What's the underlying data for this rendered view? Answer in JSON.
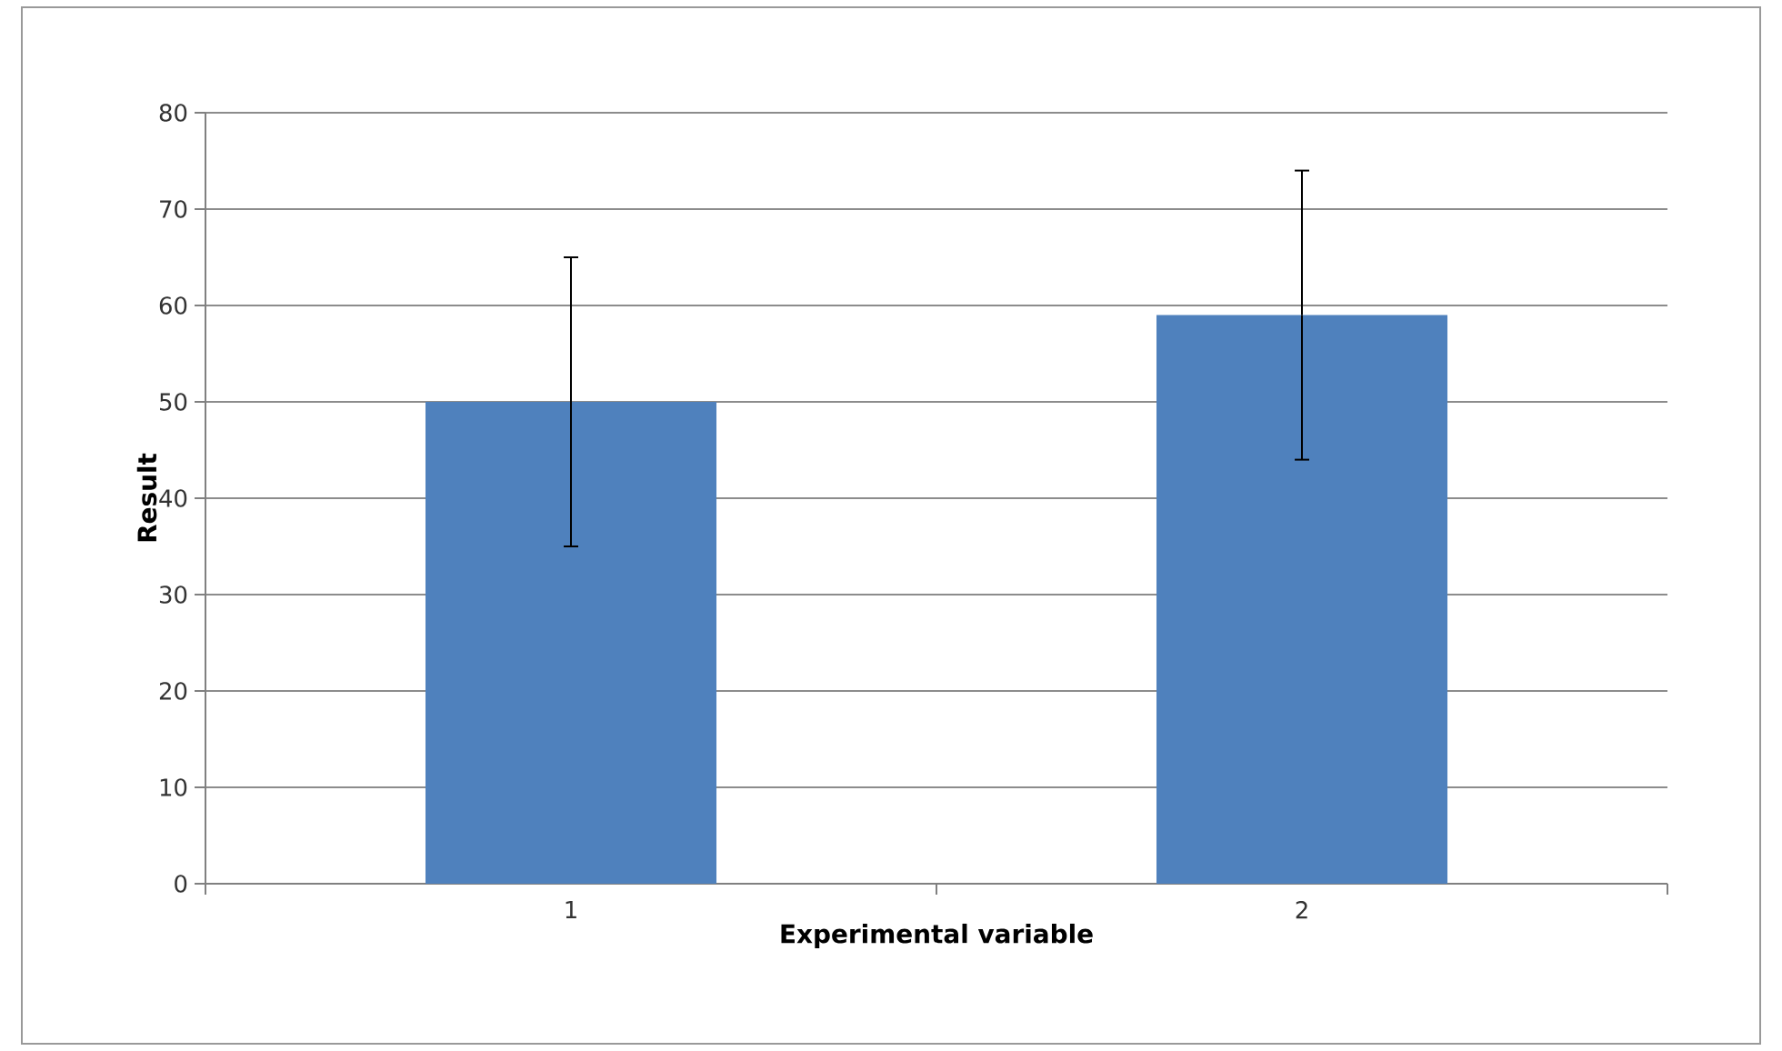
{
  "chart_data": {
    "type": "bar",
    "xlabel": "Experimental variable",
    "ylabel": "Result",
    "categories": [
      "1",
      "2"
    ],
    "values": [
      50,
      59
    ],
    "errors": [
      15,
      15
    ],
    "color": "#4f81bd",
    "ylim": [
      0,
      80
    ],
    "yticks": [
      0,
      10,
      20,
      30,
      40,
      50,
      60,
      70,
      80
    ],
    "grid": "y"
  }
}
